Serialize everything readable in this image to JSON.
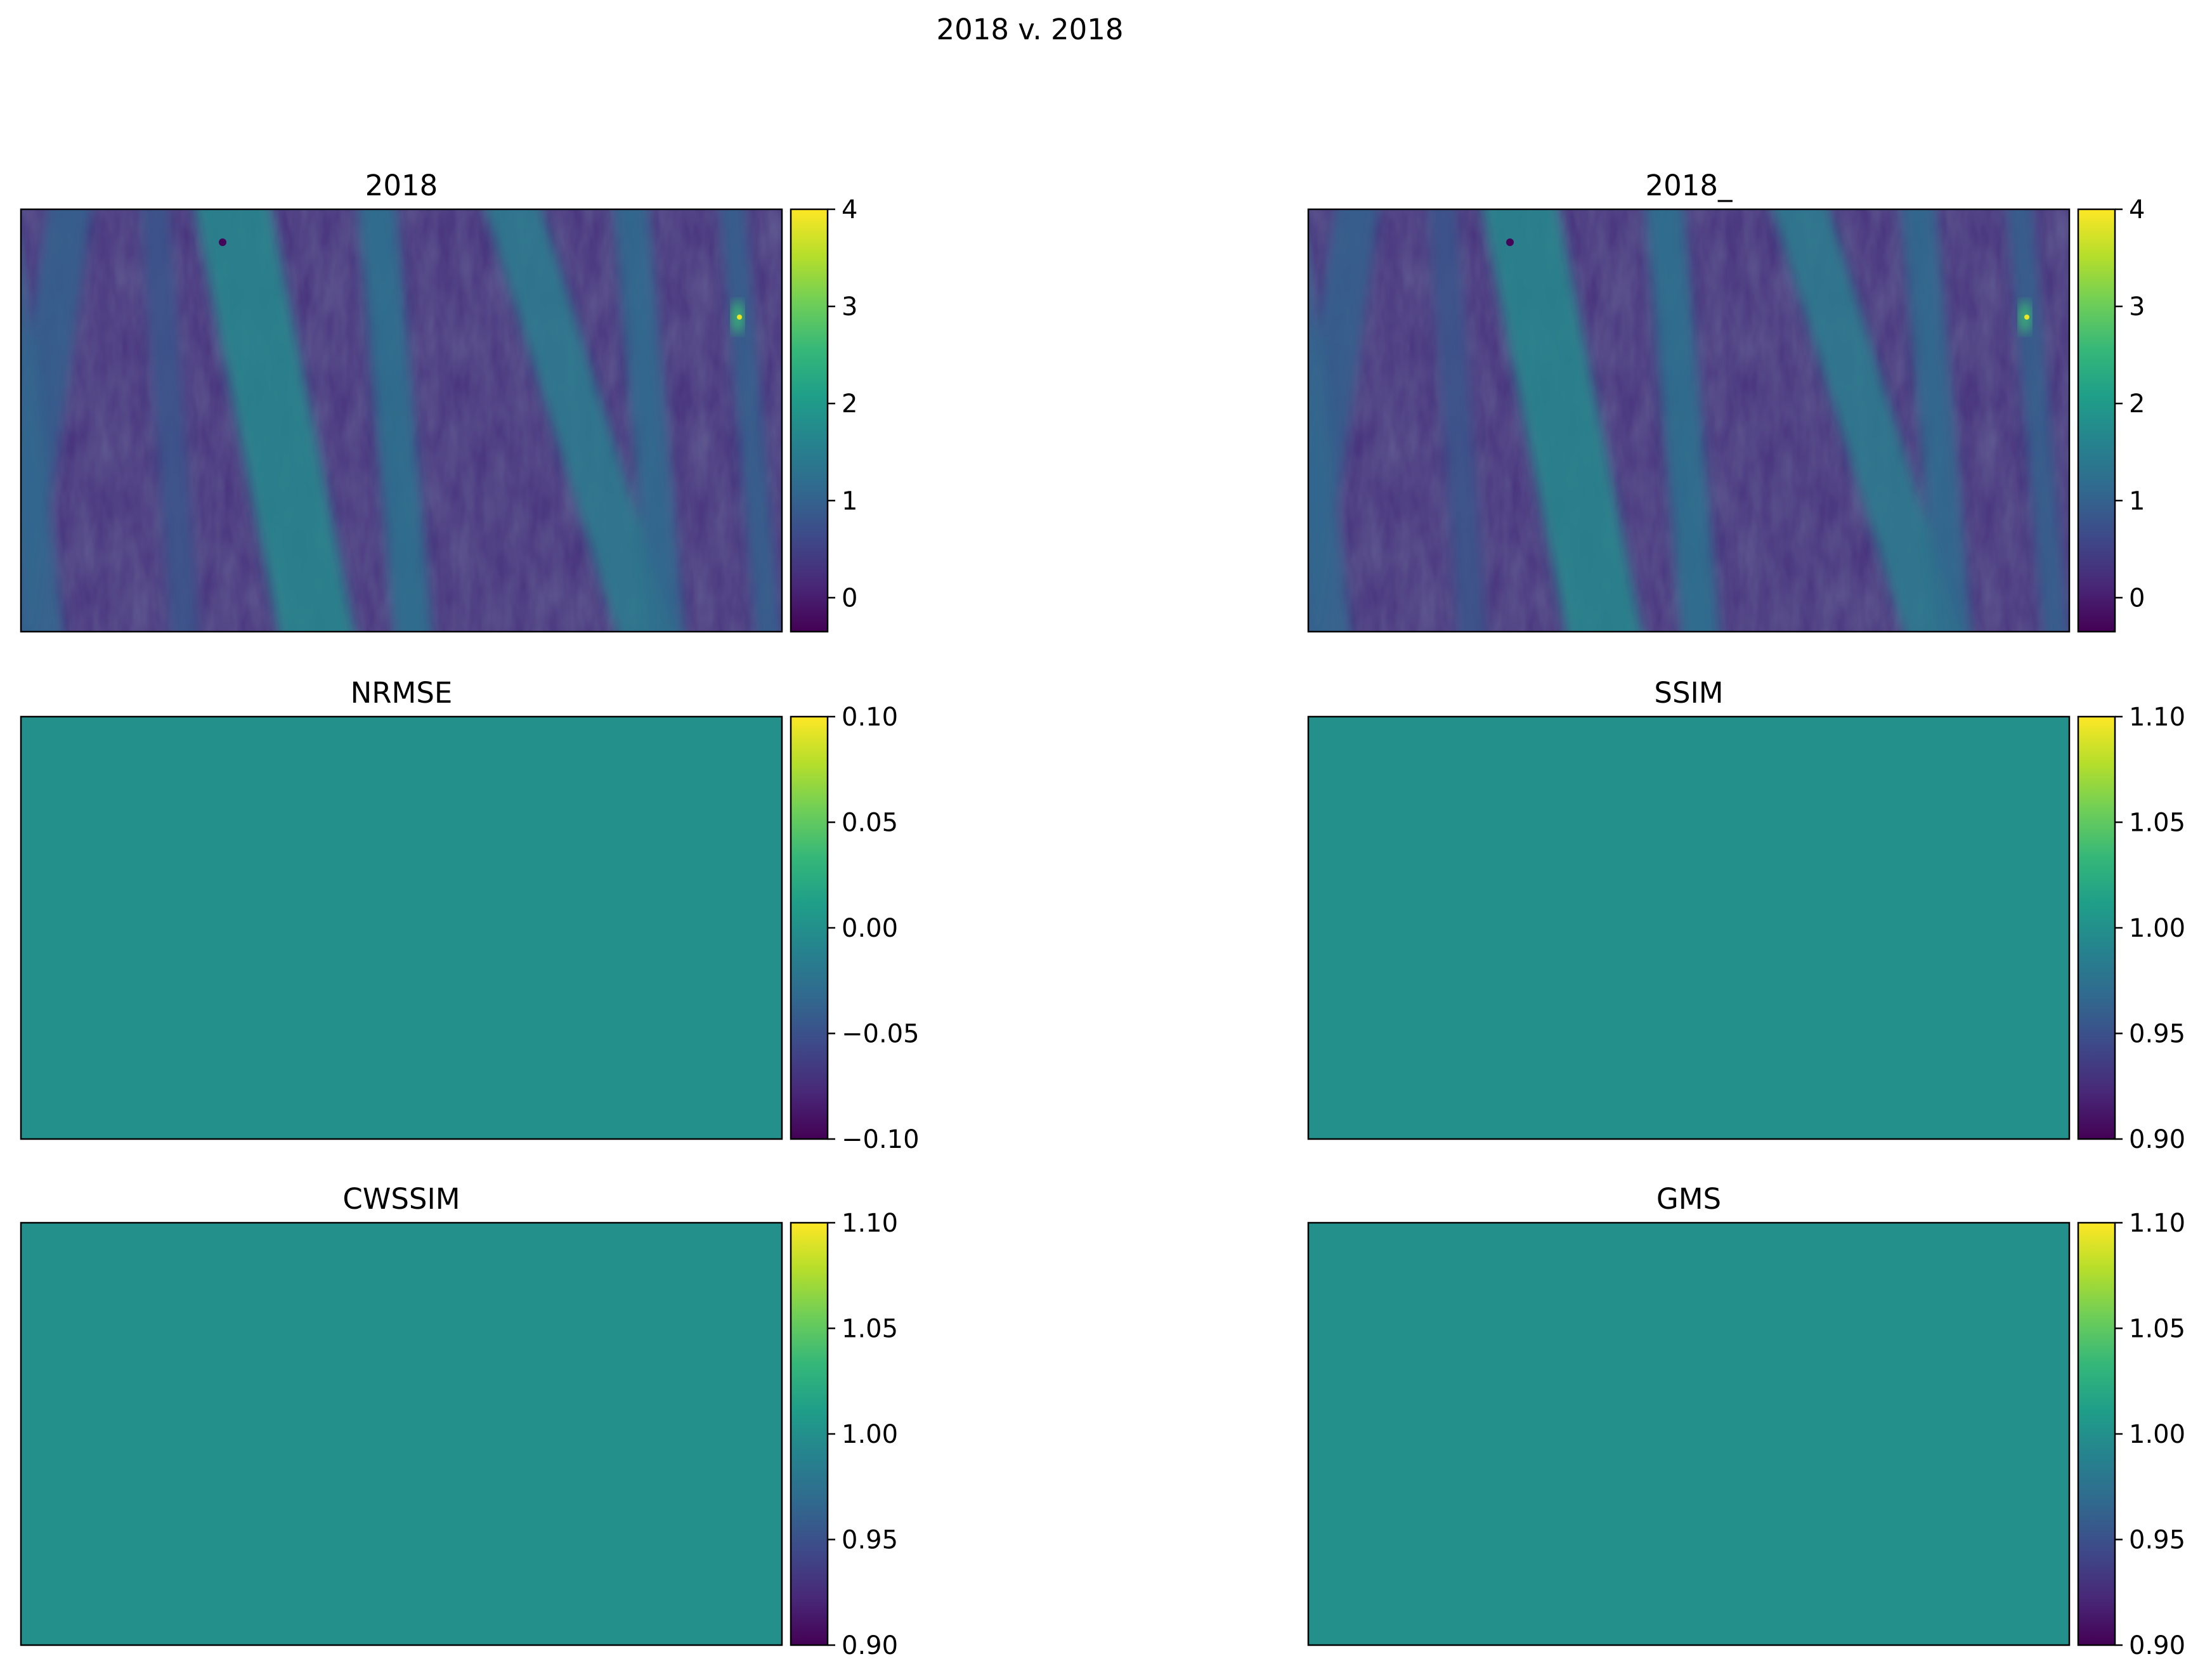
{
  "figure": {
    "suptitle": "2018 v. 2018"
  },
  "colormap_stops": [
    "#440154",
    "#482878",
    "#3e4989",
    "#31688e",
    "#26828e",
    "#1f9e89",
    "#35b779",
    "#6ece58",
    "#b5de2b",
    "#fde725"
  ],
  "chart_data": [
    {
      "type": "heatmap",
      "title": "2018",
      "content": "image",
      "vmin": -0.35,
      "vmax": 4.0,
      "colorbar_ticks": [
        {
          "value": 0,
          "label": "0"
        },
        {
          "value": 1,
          "label": "1"
        },
        {
          "value": 2,
          "label": "2"
        },
        {
          "value": 3,
          "label": "3"
        },
        {
          "value": 4,
          "label": "4"
        }
      ]
    },
    {
      "type": "heatmap",
      "title": "2018_",
      "content": "image",
      "vmin": -0.35,
      "vmax": 4.0,
      "colorbar_ticks": [
        {
          "value": 0,
          "label": "0"
        },
        {
          "value": 1,
          "label": "1"
        },
        {
          "value": 2,
          "label": "2"
        },
        {
          "value": 3,
          "label": "3"
        },
        {
          "value": 4,
          "label": "4"
        }
      ]
    },
    {
      "type": "heatmap",
      "title": "NRMSE",
      "content": "uniform",
      "uniform_value": 0.0,
      "vmin": -0.1,
      "vmax": 0.1,
      "colorbar_ticks": [
        {
          "value": 0.1,
          "label": "0.10"
        },
        {
          "value": 0.05,
          "label": "0.05"
        },
        {
          "value": 0.0,
          "label": "0.00"
        },
        {
          "value": -0.05,
          "label": "−0.05"
        },
        {
          "value": -0.1,
          "label": "−0.10"
        }
      ]
    },
    {
      "type": "heatmap",
      "title": "SSIM",
      "content": "uniform",
      "uniform_value": 1.0,
      "vmin": 0.9,
      "vmax": 1.1,
      "colorbar_ticks": [
        {
          "value": 1.1,
          "label": "1.10"
        },
        {
          "value": 1.05,
          "label": "1.05"
        },
        {
          "value": 1.0,
          "label": "1.00"
        },
        {
          "value": 0.95,
          "label": "0.95"
        },
        {
          "value": 0.9,
          "label": "0.90"
        }
      ]
    },
    {
      "type": "heatmap",
      "title": "CWSSIM",
      "content": "uniform",
      "uniform_value": 1.0,
      "vmin": 0.9,
      "vmax": 1.1,
      "colorbar_ticks": [
        {
          "value": 1.1,
          "label": "1.10"
        },
        {
          "value": 1.05,
          "label": "1.05"
        },
        {
          "value": 1.0,
          "label": "1.00"
        },
        {
          "value": 0.95,
          "label": "0.95"
        },
        {
          "value": 0.9,
          "label": "0.90"
        }
      ]
    },
    {
      "type": "heatmap",
      "title": "GMS",
      "content": "uniform",
      "uniform_value": 1.0,
      "vmin": 0.9,
      "vmax": 1.1,
      "colorbar_ticks": [
        {
          "value": 1.1,
          "label": "1.10"
        },
        {
          "value": 1.05,
          "label": "1.05"
        },
        {
          "value": 1.0,
          "label": "1.00"
        },
        {
          "value": 0.95,
          "label": "0.95"
        },
        {
          "value": 0.9,
          "label": "0.90"
        }
      ]
    }
  ]
}
